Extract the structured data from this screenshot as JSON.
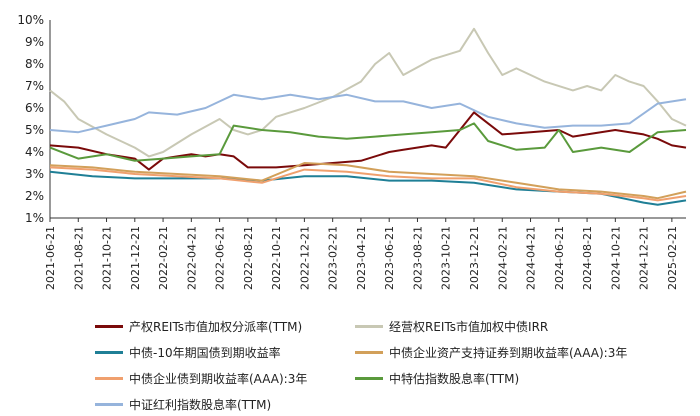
{
  "chart_data": {
    "type": "line",
    "ylim": [
      1,
      10
    ],
    "y_ticks": [
      "1%",
      "2%",
      "3%",
      "4%",
      "5%",
      "6%",
      "7%",
      "8%",
      "9%",
      "10%"
    ],
    "x_range": [
      "2021-06",
      "2025-03"
    ],
    "x_ticks": [
      "2021-06-21",
      "2021-08-21",
      "2021-10-21",
      "2021-12-21",
      "2022-02-21",
      "2022-04-21",
      "2022-06-21",
      "2022-08-21",
      "2022-10-21",
      "2022-12-21",
      "2023-02-21",
      "2023-04-21",
      "2023-06-21",
      "2023-08-21",
      "2023-10-21",
      "2023-12-21",
      "2024-02-21",
      "2024-04-21",
      "2024-06-21",
      "2024-08-21",
      "2024-10-21",
      "2024-12-21",
      "2025-02-21"
    ],
    "grid": false,
    "legend_position": "bottom",
    "series": [
      {
        "name": "产权REITs市值加权分派率(TTM)",
        "color": "#7a0a0a",
        "x": [
          "2021-06",
          "2021-08",
          "2021-10",
          "2021-12",
          "2022-01",
          "2022-02",
          "2022-03",
          "2022-04",
          "2022-05",
          "2022-06",
          "2022-07",
          "2022-08",
          "2022-10",
          "2022-12",
          "2023-02",
          "2023-04",
          "2023-06",
          "2023-07",
          "2023-09",
          "2023-10",
          "2023-11",
          "2023-12",
          "2024-01",
          "2024-02",
          "2024-04",
          "2024-06",
          "2024-07",
          "2024-08",
          "2024-10",
          "2024-11",
          "2024-12",
          "2025-01",
          "2025-02",
          "2025-03"
        ],
        "values": [
          4.3,
          4.2,
          3.9,
          3.7,
          3.2,
          3.7,
          3.8,
          3.9,
          3.8,
          3.9,
          3.8,
          3.3,
          3.3,
          3.4,
          3.5,
          3.6,
          4.0,
          4.1,
          4.3,
          4.2,
          5.0,
          5.8,
          5.3,
          4.8,
          4.9,
          5.0,
          4.7,
          4.8,
          5.0,
          4.9,
          4.8,
          4.6,
          4.3,
          4.2
        ]
      },
      {
        "name": "经营权REITs市值加权中债IRR",
        "color": "#c8c8b4",
        "x": [
          "2021-06",
          "2021-07",
          "2021-08",
          "2021-10",
          "2021-12",
          "2022-01",
          "2022-02",
          "2022-04",
          "2022-06",
          "2022-07",
          "2022-08",
          "2022-09",
          "2022-10",
          "2022-12",
          "2023-02",
          "2023-04",
          "2023-05",
          "2023-06",
          "2023-07",
          "2023-09",
          "2023-11",
          "2023-12",
          "2024-01",
          "2024-02",
          "2024-03",
          "2024-05",
          "2024-07",
          "2024-08",
          "2024-09",
          "2024-10",
          "2024-11",
          "2024-12",
          "2025-01",
          "2025-02",
          "2025-03"
        ],
        "values": [
          6.8,
          6.3,
          5.5,
          4.8,
          4.2,
          3.8,
          4.0,
          4.8,
          5.5,
          5.0,
          4.8,
          5.0,
          5.6,
          6.0,
          6.5,
          7.2,
          8.0,
          8.5,
          7.5,
          8.2,
          8.6,
          9.6,
          8.5,
          7.5,
          7.8,
          7.2,
          6.8,
          7.0,
          6.8,
          7.5,
          7.2,
          7.0,
          6.3,
          5.5,
          5.2
        ]
      },
      {
        "name": "中债-10年期国债到期收益率",
        "color": "#1f7f96",
        "x": [
          "2021-06",
          "2021-09",
          "2021-12",
          "2022-03",
          "2022-06",
          "2022-09",
          "2022-12",
          "2023-03",
          "2023-06",
          "2023-09",
          "2023-12",
          "2024-03",
          "2024-06",
          "2024-09",
          "2024-12",
          "2025-01",
          "2025-03"
        ],
        "values": [
          3.1,
          2.9,
          2.8,
          2.8,
          2.8,
          2.7,
          2.9,
          2.9,
          2.7,
          2.7,
          2.6,
          2.3,
          2.2,
          2.1,
          1.7,
          1.6,
          1.8
        ]
      },
      {
        "name": "中债企业资产支持证券到期收益率(AAA):3年",
        "color": "#d2a05a",
        "x": [
          "2021-06",
          "2021-09",
          "2021-12",
          "2022-03",
          "2022-06",
          "2022-09",
          "2022-12",
          "2023-03",
          "2023-06",
          "2023-09",
          "2023-12",
          "2024-03",
          "2024-06",
          "2024-09",
          "2024-12",
          "2025-01",
          "2025-03"
        ],
        "values": [
          3.4,
          3.3,
          3.1,
          3.0,
          2.9,
          2.7,
          3.5,
          3.4,
          3.1,
          3.0,
          2.9,
          2.6,
          2.3,
          2.2,
          2.0,
          1.9,
          2.2
        ]
      },
      {
        "name": "中债企业债到期收益率(AAA):3年",
        "color": "#f0a06e",
        "x": [
          "2021-06",
          "2021-09",
          "2021-12",
          "2022-03",
          "2022-06",
          "2022-09",
          "2022-12",
          "2023-03",
          "2023-06",
          "2023-09",
          "2023-12",
          "2024-03",
          "2024-06",
          "2024-09",
          "2024-12",
          "2025-01",
          "2025-03"
        ],
        "values": [
          3.3,
          3.2,
          3.0,
          2.9,
          2.8,
          2.6,
          3.2,
          3.1,
          2.9,
          2.8,
          2.8,
          2.4,
          2.2,
          2.1,
          1.9,
          1.8,
          2.0
        ]
      },
      {
        "name": "中特估指数股息率(TTM)",
        "color": "#5a9a3c",
        "x": [
          "2021-06",
          "2021-08",
          "2021-10",
          "2021-12",
          "2022-02",
          "2022-04",
          "2022-06",
          "2022-07",
          "2022-09",
          "2022-11",
          "2023-01",
          "2023-03",
          "2023-05",
          "2023-07",
          "2023-09",
          "2023-11",
          "2023-12",
          "2024-01",
          "2024-03",
          "2024-05",
          "2024-06",
          "2024-07",
          "2024-09",
          "2024-11",
          "2025-01",
          "2025-03"
        ],
        "values": [
          4.2,
          3.7,
          3.9,
          3.6,
          3.7,
          3.8,
          3.9,
          5.2,
          5.0,
          4.9,
          4.7,
          4.6,
          4.7,
          4.8,
          4.9,
          5.0,
          5.3,
          4.5,
          4.1,
          4.2,
          5.0,
          4.0,
          4.2,
          4.0,
          4.9,
          5.0
        ]
      },
      {
        "name": "中证红利指数股息率(TTM)",
        "color": "#96b4dc",
        "x": [
          "2021-06",
          "2021-08",
          "2021-10",
          "2021-12",
          "2022-01",
          "2022-03",
          "2022-05",
          "2022-06",
          "2022-07",
          "2022-09",
          "2022-11",
          "2023-01",
          "2023-03",
          "2023-05",
          "2023-07",
          "2023-09",
          "2023-11",
          "2024-01",
          "2024-03",
          "2024-05",
          "2024-07",
          "2024-09",
          "2024-11",
          "2025-01",
          "2025-03"
        ],
        "values": [
          5.0,
          4.9,
          5.2,
          5.5,
          5.8,
          5.7,
          6.0,
          6.3,
          6.6,
          6.4,
          6.6,
          6.4,
          6.6,
          6.3,
          6.3,
          6.0,
          6.2,
          5.6,
          5.3,
          5.1,
          5.2,
          5.2,
          5.3,
          6.2,
          6.4
        ]
      }
    ]
  }
}
